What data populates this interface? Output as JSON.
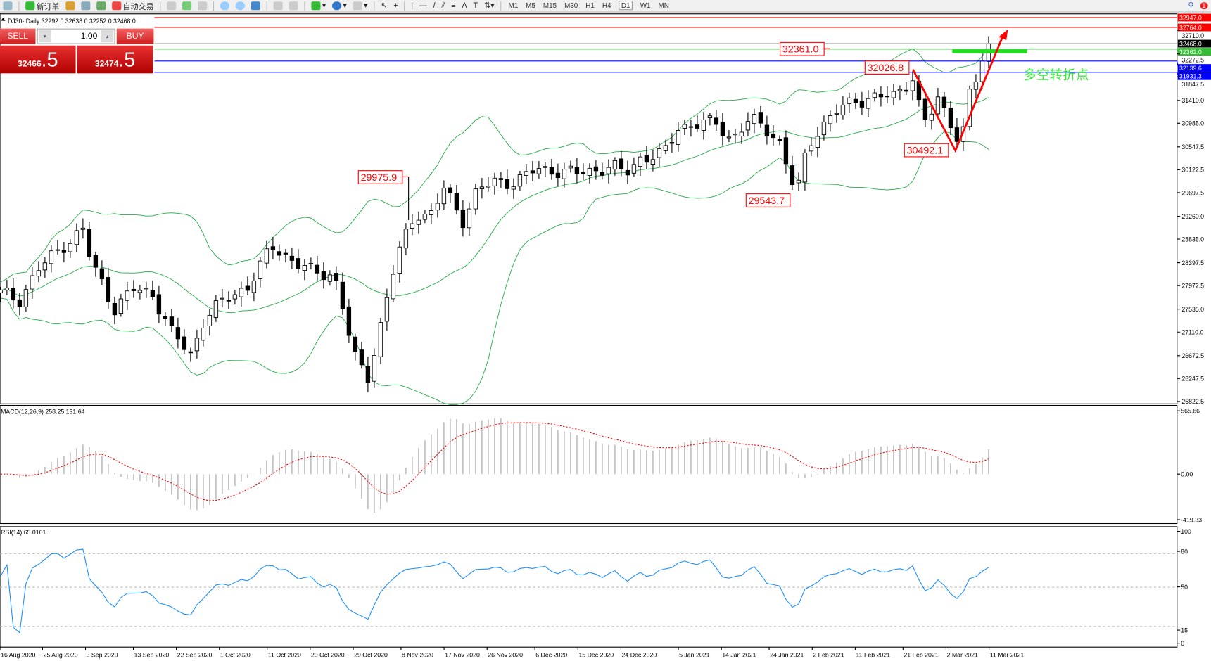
{
  "toolbar": {
    "new_order_label": "新订单",
    "auto_trading_label": "自动交易",
    "timeframes": [
      "M1",
      "M5",
      "M15",
      "M30",
      "H1",
      "H4",
      "D1",
      "W1",
      "MN"
    ],
    "active_timeframe": "D1",
    "notification_count": "1"
  },
  "chart": {
    "title": "DJ30-,Daily  32292.0 32638.0 32252.0 32468.0",
    "symbol": "DJ30-",
    "period": "Daily",
    "ohlc": {
      "open": 32292.0,
      "high": 32638.0,
      "low": 32252.0,
      "close": 32468.0
    }
  },
  "trade_panel": {
    "sell_label": "SELL",
    "buy_label": "BUY",
    "lot": "1.00",
    "sell_price_main": "32466",
    "sell_price_frac": ".5",
    "buy_price_main": "32474",
    "buy_price_frac": ".5"
  },
  "chart_data": [
    {
      "type": "candlestick",
      "price_axis_ticks": [
        "32710.0",
        "32272.5",
        "31847.5",
        "31410.0",
        "30985.0",
        "30547.5",
        "30122.5",
        "29697.5",
        "29260.0",
        "28835.0",
        "28397.5",
        "27972.5",
        "27535.0",
        "27110.0",
        "26672.5",
        "26247.5",
        "25822.5"
      ],
      "date_axis_ticks": [
        "16 Aug 2020",
        "25 Aug 2020",
        "3 Sep 2020",
        "13 Sep 2020",
        "22 Sep 2020",
        "1 Oct 2020",
        "11 Oct 2020",
        "20 Oct 2020",
        "29 Oct 2020",
        "8 Nov 2020",
        "17 Nov 2020",
        "26 Nov 2020",
        "6 Dec 2020",
        "15 Dec 2020",
        "24 Dec 2020",
        "5 Jan 2021",
        "14 Jan 2021",
        "24 Jan 2021",
        "2 Feb 2021",
        "11 Feb 2021",
        "21 Feb 2021",
        "2 Mar 2021",
        "11 Mar 2021"
      ],
      "ylim": [
        25822.5,
        32947.0
      ],
      "approx_closes": [
        [
          "2020-08-17",
          27830
        ],
        [
          "2020-08-20",
          27690
        ],
        [
          "2020-08-24",
          28260
        ],
        [
          "2020-08-29",
          28690
        ],
        [
          "2020-09-03",
          29050
        ],
        [
          "2020-09-04",
          28400
        ],
        [
          "2020-09-06",
          28120
        ],
        [
          "2020-09-09",
          27540
        ],
        [
          "2020-09-13",
          27900
        ],
        [
          "2020-09-17",
          27830
        ],
        [
          "2020-09-21",
          27110
        ],
        [
          "2020-09-25",
          26680
        ],
        [
          "2020-09-28",
          27400
        ],
        [
          "2020-10-02",
          27690
        ],
        [
          "2020-10-07",
          27970
        ],
        [
          "2020-10-12",
          28690
        ],
        [
          "2020-10-16",
          28470
        ],
        [
          "2020-10-21",
          28190
        ],
        [
          "2020-10-25",
          28190
        ],
        [
          "2020-10-27",
          27540
        ],
        [
          "2020-10-29",
          26680
        ],
        [
          "2020-11-01",
          26250
        ],
        [
          "2020-11-03",
          26970
        ],
        [
          "2020-11-06",
          28120
        ],
        [
          "2020-11-08",
          28690
        ],
        [
          "2020-11-11",
          29330
        ],
        [
          "2020-11-14",
          29260
        ],
        [
          "2020-11-17",
          29760
        ],
        [
          "2020-11-21",
          29190
        ],
        [
          "2020-11-24",
          29760
        ],
        [
          "2020-11-28",
          29900
        ],
        [
          "2020-12-02",
          29900
        ],
        [
          "2020-12-06",
          30120
        ],
        [
          "2020-12-10",
          30120
        ],
        [
          "2020-12-15",
          30050
        ],
        [
          "2020-12-22",
          30190
        ],
        [
          "2020-12-25",
          30050
        ],
        [
          "2020-12-28",
          30340
        ],
        [
          "2021-01-02",
          30410
        ],
        [
          "2021-01-05",
          30910
        ],
        [
          "2021-01-09",
          30980
        ],
        [
          "2021-01-13",
          30980
        ],
        [
          "2021-01-16",
          30690
        ],
        [
          "2021-01-20",
          31050
        ],
        [
          "2021-01-23",
          30910
        ],
        [
          "2021-01-26",
          30690
        ],
        [
          "2021-01-29",
          29830
        ],
        [
          "2021-01-30",
          29760
        ],
        [
          "2021-02-01",
          30550
        ],
        [
          "2021-02-03",
          30840
        ],
        [
          "2021-02-07",
          31200
        ],
        [
          "2021-02-11",
          31410
        ],
        [
          "2021-02-16",
          31480
        ],
        [
          "2021-02-19",
          31480
        ],
        [
          "2021-02-23",
          31840
        ],
        [
          "2021-02-24",
          31410
        ],
        [
          "2021-02-26",
          30910
        ],
        [
          "2021-02-28",
          31480
        ],
        [
          "2021-03-04",
          30840
        ],
        [
          "2021-03-05",
          30550
        ],
        [
          "2021-03-07",
          31550
        ],
        [
          "2021-03-09",
          31910
        ],
        [
          "2021-03-10",
          32340
        ],
        [
          "2021-03-11",
          32468
        ]
      ],
      "indicators": [
        "Bollinger Bands"
      ],
      "horizontal_lines": [
        {
          "price": "32947.0",
          "color": "#ff0000"
        },
        {
          "price": "32764.0",
          "color": "#ff0000"
        },
        {
          "price": "32468.0",
          "color": "#c0c0c0",
          "tag_bg": "#000000"
        },
        {
          "price": "32361.0",
          "color": "#33bb33",
          "tag_bg": "#33bb33"
        },
        {
          "price": "32139.6",
          "color": "#0000ff"
        },
        {
          "price": "31931.3",
          "color": "#0000ff"
        }
      ],
      "price_labels": [
        "32361.0",
        "32026.8",
        "29975.9",
        "29543.7",
        "30492.1"
      ],
      "annotation_text": "多空转折点",
      "annotation_color": "#33ee33",
      "arrow_color": "#ff0000"
    },
    {
      "type": "histogram+line",
      "label": "MACD(12,26,9) 258.25 131.64",
      "ticks": [
        "565.66",
        "0.00",
        "-419.33"
      ],
      "ylim": [
        -419.33,
        565.66
      ],
      "histogram_color": "#c0c0c0",
      "signal_color": "#ff0000"
    },
    {
      "type": "line",
      "label": "RSI(14) 65.0161",
      "ticks": [
        "100",
        "80",
        "50",
        "15",
        "0"
      ],
      "ylim": [
        0,
        100
      ],
      "levels": [
        80,
        50,
        15
      ],
      "line_color": "#1e90ff"
    }
  ]
}
